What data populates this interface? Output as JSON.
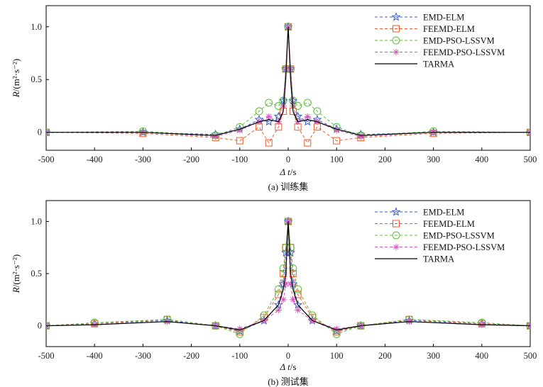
{
  "chart_data": [
    {
      "type": "line",
      "caption": "(a) 训练集",
      "ylabel_main": "R",
      "ylabel_unit": "/(m²·s⁻²)",
      "xlabel_main": "Δ t",
      "xlabel_unit": "/s",
      "xlim": [
        -500,
        500
      ],
      "ylim": [
        -0.17,
        1.2
      ],
      "xticks": [
        "-500",
        "-400",
        "-300",
        "-200",
        "-100",
        "0",
        "100",
        "200",
        "300",
        "400",
        "500"
      ],
      "yticks": [
        "0",
        "0.5",
        "1.0"
      ],
      "legend_position": "top-right",
      "series": [
        {
          "name": "EMD-ELM",
          "color": "#3a5bc7",
          "marker": "star",
          "x": [
            -500,
            -300,
            -150,
            -100,
            -60,
            -40,
            -20,
            -10,
            -5,
            0,
            5,
            10,
            20,
            40,
            60,
            100,
            150,
            300,
            500
          ],
          "y": [
            0.0,
            0.0,
            -0.02,
            0.03,
            0.12,
            0.1,
            0.15,
            0.3,
            0.6,
            1.0,
            0.6,
            0.3,
            0.15,
            0.1,
            0.12,
            0.03,
            -0.02,
            0.0,
            0.0
          ]
        },
        {
          "name": "FEEMD-ELM",
          "color": "#f05a28",
          "marker": "square",
          "x": [
            -500,
            -300,
            -150,
            -100,
            -60,
            -40,
            -20,
            -10,
            -5,
            0,
            5,
            10,
            20,
            40,
            60,
            100,
            150,
            300,
            500
          ],
          "y": [
            0.0,
            -0.01,
            -0.05,
            -0.08,
            0.05,
            -0.1,
            0.05,
            0.2,
            0.6,
            1.0,
            0.6,
            0.2,
            0.05,
            -0.1,
            0.05,
            -0.08,
            -0.05,
            -0.01,
            0.0
          ]
        },
        {
          "name": "EMD-PSO-LSSVM",
          "color": "#5cbf3a",
          "marker": "circle",
          "x": [
            -500,
            -300,
            -150,
            -100,
            -60,
            -40,
            -20,
            -10,
            -5,
            0,
            5,
            10,
            20,
            40,
            60,
            100,
            150,
            300,
            500
          ],
          "y": [
            0.0,
            0.01,
            -0.03,
            0.05,
            0.2,
            0.28,
            0.25,
            0.3,
            0.6,
            1.0,
            0.6,
            0.3,
            0.25,
            0.28,
            0.2,
            0.05,
            -0.03,
            0.01,
            0.0
          ]
        },
        {
          "name": "FEEMD-PSO-LSSVM",
          "color": "#d957b8",
          "marker": "asterisk",
          "x": [
            -500,
            -300,
            -150,
            -100,
            -60,
            -40,
            -20,
            -10,
            -5,
            0,
            5,
            10,
            20,
            40,
            60,
            100,
            150,
            300,
            500
          ],
          "y": [
            0.0,
            0.0,
            -0.04,
            0.02,
            0.1,
            0.15,
            0.1,
            0.25,
            0.6,
            1.0,
            0.6,
            0.25,
            0.1,
            0.15,
            0.1,
            0.02,
            -0.04,
            0.0,
            0.0
          ]
        },
        {
          "name": "TARMA",
          "color": "#000000",
          "marker": "none",
          "x": [
            -500,
            -300,
            -150,
            -100,
            -60,
            -40,
            -20,
            -10,
            -5,
            0,
            5,
            10,
            20,
            40,
            60,
            100,
            150,
            300,
            500
          ],
          "y": [
            0.0,
            0.0,
            -0.03,
            0.03,
            0.1,
            0.12,
            0.1,
            0.2,
            0.5,
            1.0,
            0.5,
            0.2,
            0.1,
            0.12,
            0.1,
            0.03,
            -0.03,
            0.0,
            0.0
          ]
        }
      ]
    },
    {
      "type": "line",
      "caption": "(b) 测试集",
      "ylabel_main": "R",
      "ylabel_unit": "/(m²·s⁻²)",
      "xlabel_main": "Δ t",
      "xlabel_unit": "/s",
      "xlim": [
        -500,
        500
      ],
      "ylim": [
        -0.2,
        1.2
      ],
      "xticks": [
        "-500",
        "-400",
        "-300",
        "-200",
        "-100",
        "0",
        "100",
        "200",
        "300",
        "400",
        "500"
      ],
      "yticks": [
        "0",
        "0.5",
        "1.0"
      ],
      "legend_position": "top-right",
      "series": [
        {
          "name": "EMD-ELM",
          "color": "#3a5bc7",
          "marker": "star",
          "x": [
            -500,
            -400,
            -250,
            -150,
            -100,
            -50,
            -20,
            -10,
            -5,
            0,
            5,
            10,
            20,
            50,
            100,
            150,
            250,
            400,
            500
          ],
          "y": [
            0.0,
            0.02,
            0.05,
            0.0,
            -0.05,
            0.05,
            0.2,
            0.4,
            0.7,
            1.0,
            0.7,
            0.4,
            0.2,
            0.05,
            -0.05,
            0.0,
            0.05,
            0.02,
            0.0
          ]
        },
        {
          "name": "FEEMD-ELM",
          "color": "#f05a28",
          "marker": "square",
          "x": [
            -500,
            -400,
            -250,
            -150,
            -100,
            -50,
            -20,
            -10,
            -5,
            0,
            5,
            10,
            20,
            50,
            100,
            150,
            250,
            400,
            500
          ],
          "y": [
            0.0,
            0.02,
            0.06,
            0.0,
            -0.06,
            0.08,
            0.3,
            0.5,
            0.75,
            1.0,
            0.75,
            0.5,
            0.3,
            0.08,
            -0.06,
            0.0,
            0.06,
            0.02,
            0.0
          ]
        },
        {
          "name": "EMD-PSO-LSSVM",
          "color": "#5cbf3a",
          "marker": "circle",
          "x": [
            -500,
            -400,
            -250,
            -150,
            -100,
            -50,
            -20,
            -10,
            -5,
            0,
            5,
            10,
            20,
            50,
            100,
            150,
            250,
            400,
            500
          ],
          "y": [
            0.0,
            0.03,
            0.06,
            0.0,
            -0.08,
            0.1,
            0.35,
            0.55,
            0.75,
            1.0,
            0.75,
            0.55,
            0.35,
            0.1,
            -0.08,
            0.0,
            0.06,
            0.03,
            0.0
          ]
        },
        {
          "name": "FEEMD-PSO-LSSVM",
          "color": "#d957b8",
          "marker": "asterisk",
          "x": [
            -500,
            -400,
            -250,
            -150,
            -100,
            -50,
            -20,
            -10,
            -5,
            0,
            5,
            10,
            20,
            50,
            100,
            150,
            250,
            400,
            500
          ],
          "y": [
            0.0,
            0.01,
            0.04,
            0.0,
            -0.03,
            0.05,
            0.15,
            0.25,
            0.4,
            1.0,
            0.4,
            0.25,
            0.15,
            0.05,
            -0.03,
            0.0,
            0.04,
            0.01,
            0.0
          ]
        },
        {
          "name": "TARMA",
          "color": "#000000",
          "marker": "none",
          "x": [
            -500,
            -400,
            -250,
            -150,
            -100,
            -50,
            -20,
            -10,
            -5,
            0,
            5,
            10,
            20,
            50,
            100,
            150,
            250,
            400,
            500
          ],
          "y": [
            0.0,
            0.01,
            0.04,
            0.0,
            -0.04,
            0.05,
            0.2,
            0.35,
            0.5,
            1.0,
            0.5,
            0.35,
            0.2,
            0.05,
            -0.04,
            0.0,
            0.04,
            0.01,
            0.0
          ]
        }
      ]
    }
  ]
}
